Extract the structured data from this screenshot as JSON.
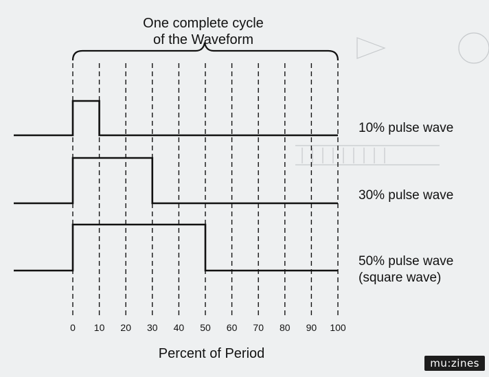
{
  "title_line1": "One complete cycle",
  "title_line2": "of the Waveform",
  "x_label": "Percent of Period",
  "x_ticks": [
    "0",
    "10",
    "20",
    "30",
    "40",
    "50",
    "60",
    "70",
    "80",
    "90",
    "100"
  ],
  "waves": [
    {
      "label": "10% pulse wave",
      "duty": 10
    },
    {
      "label": "30% pulse wave",
      "duty": 30
    },
    {
      "label": "50% pulse wave",
      "duty": 50,
      "label2": "(square wave)"
    }
  ],
  "logo_text": "mu:zines"
}
